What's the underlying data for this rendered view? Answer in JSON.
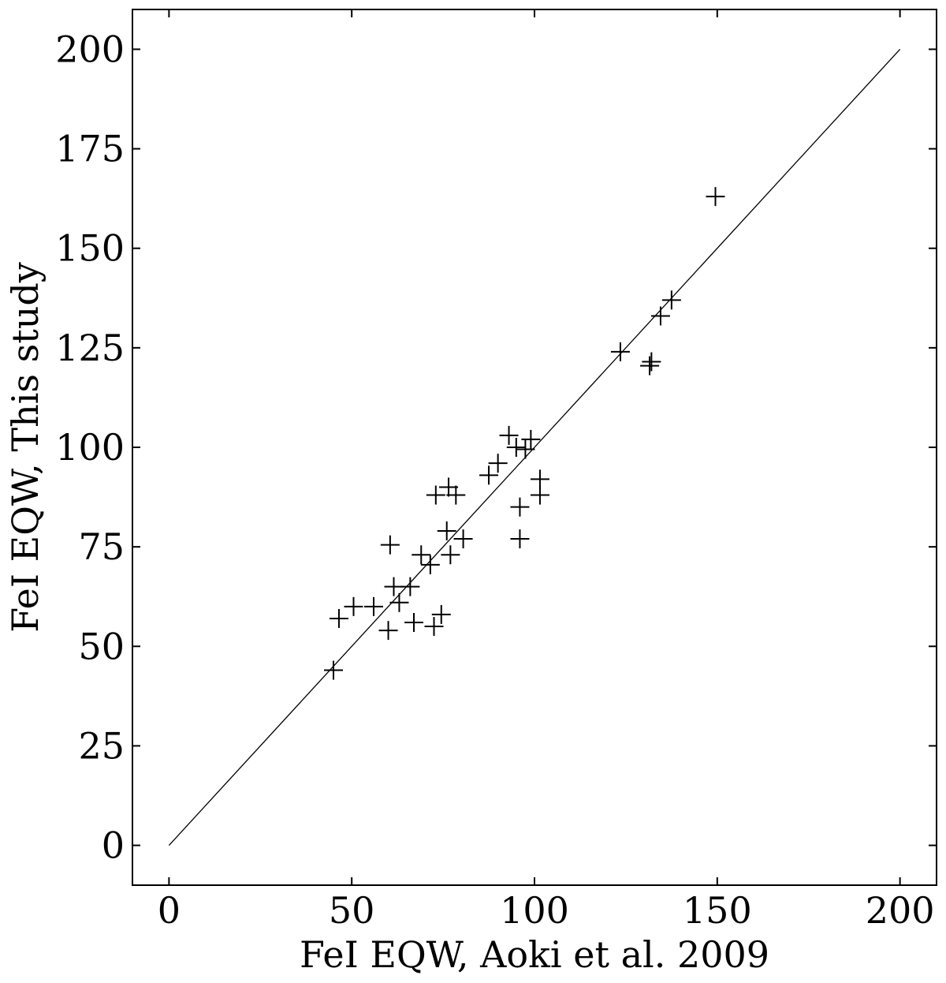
{
  "chart_data": {
    "type": "scatter",
    "title": "",
    "xlabel": "FeI EQW, Aoki et al. 2009",
    "ylabel": "FeI EQW, This study",
    "xlim": [
      -10,
      210
    ],
    "ylim": [
      -10,
      210
    ],
    "x_ticks": [
      0,
      50,
      100,
      150,
      200
    ],
    "y_ticks": [
      0,
      25,
      50,
      75,
      100,
      125,
      150,
      175,
      200
    ],
    "x_tick_labels": [
      "0",
      "50",
      "100",
      "150",
      "200"
    ],
    "y_tick_labels": [
      "0",
      "25",
      "50",
      "75",
      "100",
      "125",
      "150",
      "175",
      "200"
    ],
    "grid": false,
    "marker": "+",
    "marker_color": "#000000",
    "reference_line": {
      "x": [
        0,
        200
      ],
      "y": [
        0,
        200
      ],
      "color": "#000000"
    },
    "series": [
      {
        "points": [
          [
            45.0,
            44.0
          ],
          [
            46.5,
            57.0
          ],
          [
            50.5,
            60.0
          ],
          [
            56.0,
            60.0
          ],
          [
            60.0,
            54.0
          ],
          [
            60.5,
            75.5
          ],
          [
            61.5,
            65.0
          ],
          [
            63.0,
            61.0
          ],
          [
            66.0,
            65.0
          ],
          [
            67.0,
            56.0
          ],
          [
            69.0,
            73.0
          ],
          [
            71.5,
            70.5
          ],
          [
            72.5,
            55.0
          ],
          [
            73.0,
            88.0
          ],
          [
            74.5,
            58.0
          ],
          [
            76.0,
            79.0
          ],
          [
            76.5,
            90.0
          ],
          [
            77.0,
            73.0
          ],
          [
            78.5,
            88.0
          ],
          [
            80.5,
            77.0
          ],
          [
            87.5,
            93.0
          ],
          [
            90.0,
            96.0
          ],
          [
            93.0,
            103.0
          ],
          [
            95.0,
            100.0
          ],
          [
            96.0,
            85.0
          ],
          [
            96.0,
            77.0
          ],
          [
            97.5,
            99.5
          ],
          [
            99.0,
            102.0
          ],
          [
            101.5,
            92.0
          ],
          [
            101.5,
            88.0
          ],
          [
            123.5,
            124.0
          ],
          [
            131.5,
            120.5
          ],
          [
            132.0,
            121.5
          ],
          [
            134.5,
            133.0
          ],
          [
            137.5,
            137.0
          ],
          [
            149.5,
            163.0
          ]
        ]
      }
    ]
  }
}
